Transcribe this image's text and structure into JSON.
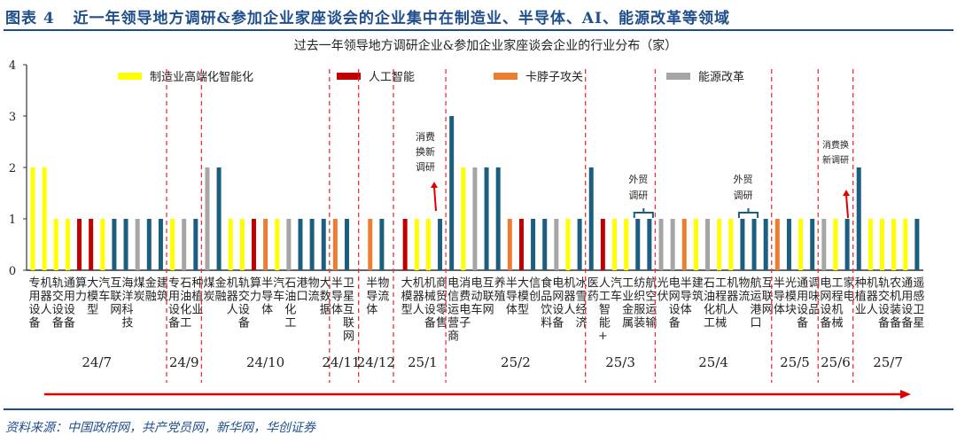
{
  "title": "图表 4   近一年领导地方调研&参加企业家座谈会的企业集中在制造业、半导体、AI、能源改革等领域",
  "source": "资料来源：中国政府网，共产党员网，新华网，华创证券",
  "chart_data": {
    "type": "bar",
    "title": "过去一年领导地方调研企业&参加企业家座谈会企业的行业分布（家）",
    "ylim": [
      0,
      4
    ],
    "yticks": [
      0,
      1,
      2,
      3,
      4
    ],
    "grid": false,
    "legend_position": "top",
    "legend": [
      {
        "key": "Y",
        "name": "制造业高端化智能化",
        "color": "#ffff00"
      },
      {
        "key": "R",
        "name": "人工智能",
        "color": "#c00000"
      },
      {
        "key": "O",
        "name": "卡脖子攻关",
        "color": "#ed7d31"
      },
      {
        "key": "G",
        "name": "能源改革",
        "color": "#a5a5a5"
      }
    ],
    "other_color": "#1b5e80",
    "groups": [
      {
        "period": "24/7",
        "bars": [
          [
            "专用设备",
            2,
            "Y"
          ],
          [
            "机器人",
            2,
            "Y"
          ],
          [
            "轨交设备",
            1,
            "Y"
          ],
          [
            "通用设备",
            1,
            "Y"
          ],
          [
            "算力",
            1,
            "R"
          ],
          [
            "大模型",
            1,
            "R"
          ],
          [
            "汽车",
            1,
            "Y"
          ],
          [
            "互联网",
            1,
            "B"
          ],
          [
            "海洋科技",
            1,
            "B"
          ],
          [
            "煤炭",
            1,
            "G"
          ],
          [
            "金融",
            1,
            "B"
          ],
          [
            "建筑",
            1,
            "B"
          ]
        ]
      },
      {
        "period": "24/9",
        "bars": [
          [
            "专用设备",
            1,
            "Y"
          ],
          [
            "石油化工",
            1,
            "G"
          ],
          [
            "种植业",
            1,
            "B"
          ]
        ]
      },
      {
        "period": "24/10",
        "bars": [
          [
            "煤炭",
            2,
            "G"
          ],
          [
            "金融",
            2,
            "B"
          ],
          [
            "机器人",
            1,
            "Y"
          ],
          [
            "轨交设备",
            1,
            "Y"
          ],
          [
            "算力",
            1,
            "R"
          ],
          [
            "半导体",
            1,
            "O"
          ],
          [
            "汽车",
            1,
            "Y"
          ],
          [
            "石油化工",
            1,
            "G"
          ],
          [
            "港口",
            1,
            "B"
          ],
          [
            "物流",
            1,
            "B"
          ],
          [
            "大数据",
            1,
            "B"
          ]
        ]
      },
      {
        "period": "24/11",
        "bars": [
          [
            "半导体",
            1,
            "O"
          ],
          [
            "卫星互联网",
            1,
            "B"
          ]
        ]
      },
      {
        "period": "24/12",
        "bars": [
          [
            "半导体",
            1,
            "O"
          ],
          [
            "物流",
            1,
            "B"
          ]
        ]
      },
      {
        "period": "25/1",
        "bars": [
          [
            "大模型",
            1,
            "R"
          ],
          [
            "机器人",
            1,
            "Y"
          ],
          [
            "机械设备",
            1,
            "Y"
          ],
          [
            "商贸零售",
            1,
            "B"
          ]
        ]
      },
      {
        "period": "25/2",
        "bars": [
          [
            "电信运营商",
            3,
            "B"
          ],
          [
            "消费电子",
            2,
            "Y"
          ],
          [
            "电动车",
            2,
            "G"
          ],
          [
            "互联网",
            2,
            "B"
          ],
          [
            "养殖",
            2,
            "B"
          ],
          [
            "半导体",
            1,
            "O"
          ],
          [
            "大模型",
            1,
            "R"
          ],
          [
            "信创",
            1,
            "B"
          ],
          [
            "食品饮料",
            1,
            "B"
          ],
          [
            "电网设备",
            1,
            "G"
          ],
          [
            "机器人",
            1,
            "Y"
          ],
          [
            "冰雪经济",
            1,
            "B"
          ]
        ]
      },
      {
        "period": "25/3",
        "bars": [
          [
            "医药",
            2,
            "B"
          ],
          [
            "人工智能+",
            1,
            "R"
          ],
          [
            "汽车",
            1,
            "Y"
          ],
          [
            "工业金属",
            1,
            "Y"
          ],
          [
            "纺织服装",
            1,
            "B"
          ],
          [
            "航空运输",
            1,
            "B"
          ]
        ]
      },
      {
        "period": "25/4",
        "bars": [
          [
            "光伏",
            1,
            "G"
          ],
          [
            "电网设备",
            1,
            "G"
          ],
          [
            "半导体",
            1,
            "O"
          ],
          [
            "建筑",
            1,
            "Y"
          ],
          [
            "石油化工",
            1,
            "G"
          ],
          [
            "工程机械",
            1,
            "Y"
          ],
          [
            "机器人",
            1,
            "Y"
          ],
          [
            "物流",
            1,
            "B"
          ],
          [
            "航运港口",
            1,
            "B"
          ],
          [
            "互联网",
            1,
            "B"
          ]
        ]
      },
      {
        "period": "25/5",
        "bars": [
          [
            "半导体",
            1,
            "O"
          ],
          [
            "光模块",
            1,
            "B"
          ],
          [
            "通用设备",
            1,
            "Y"
          ],
          [
            "调味品",
            1,
            "B"
          ]
        ]
      },
      {
        "period": "25/6",
        "bars": [
          [
            "电网设备",
            1,
            "G"
          ],
          [
            "工程机械",
            1,
            "Y"
          ],
          [
            "家电",
            1,
            "B"
          ]
        ]
      },
      {
        "period": "25/7",
        "bars": [
          [
            "种植业",
            2,
            "B"
          ],
          [
            "机器人",
            1,
            "Y"
          ],
          [
            "轨交设备",
            1,
            "Y"
          ],
          [
            "农机装备",
            1,
            "Y"
          ],
          [
            "通用设备",
            1,
            "Y"
          ],
          [
            "遥感卫星",
            1,
            "B"
          ]
        ]
      }
    ],
    "annotations": [
      {
        "text": [
          "消费",
          "换新",
          "调研"
        ],
        "period": "25/1",
        "type": "arrow"
      },
      {
        "text": [
          "外贸",
          "调研"
        ],
        "period": "25/3",
        "type": "bracket"
      },
      {
        "text": [
          "外贸",
          "调研"
        ],
        "period": "25/4",
        "type": "bracket"
      },
      {
        "text": [
          "消费换",
          "新调研"
        ],
        "period": "25/6",
        "type": "arrow"
      }
    ]
  }
}
